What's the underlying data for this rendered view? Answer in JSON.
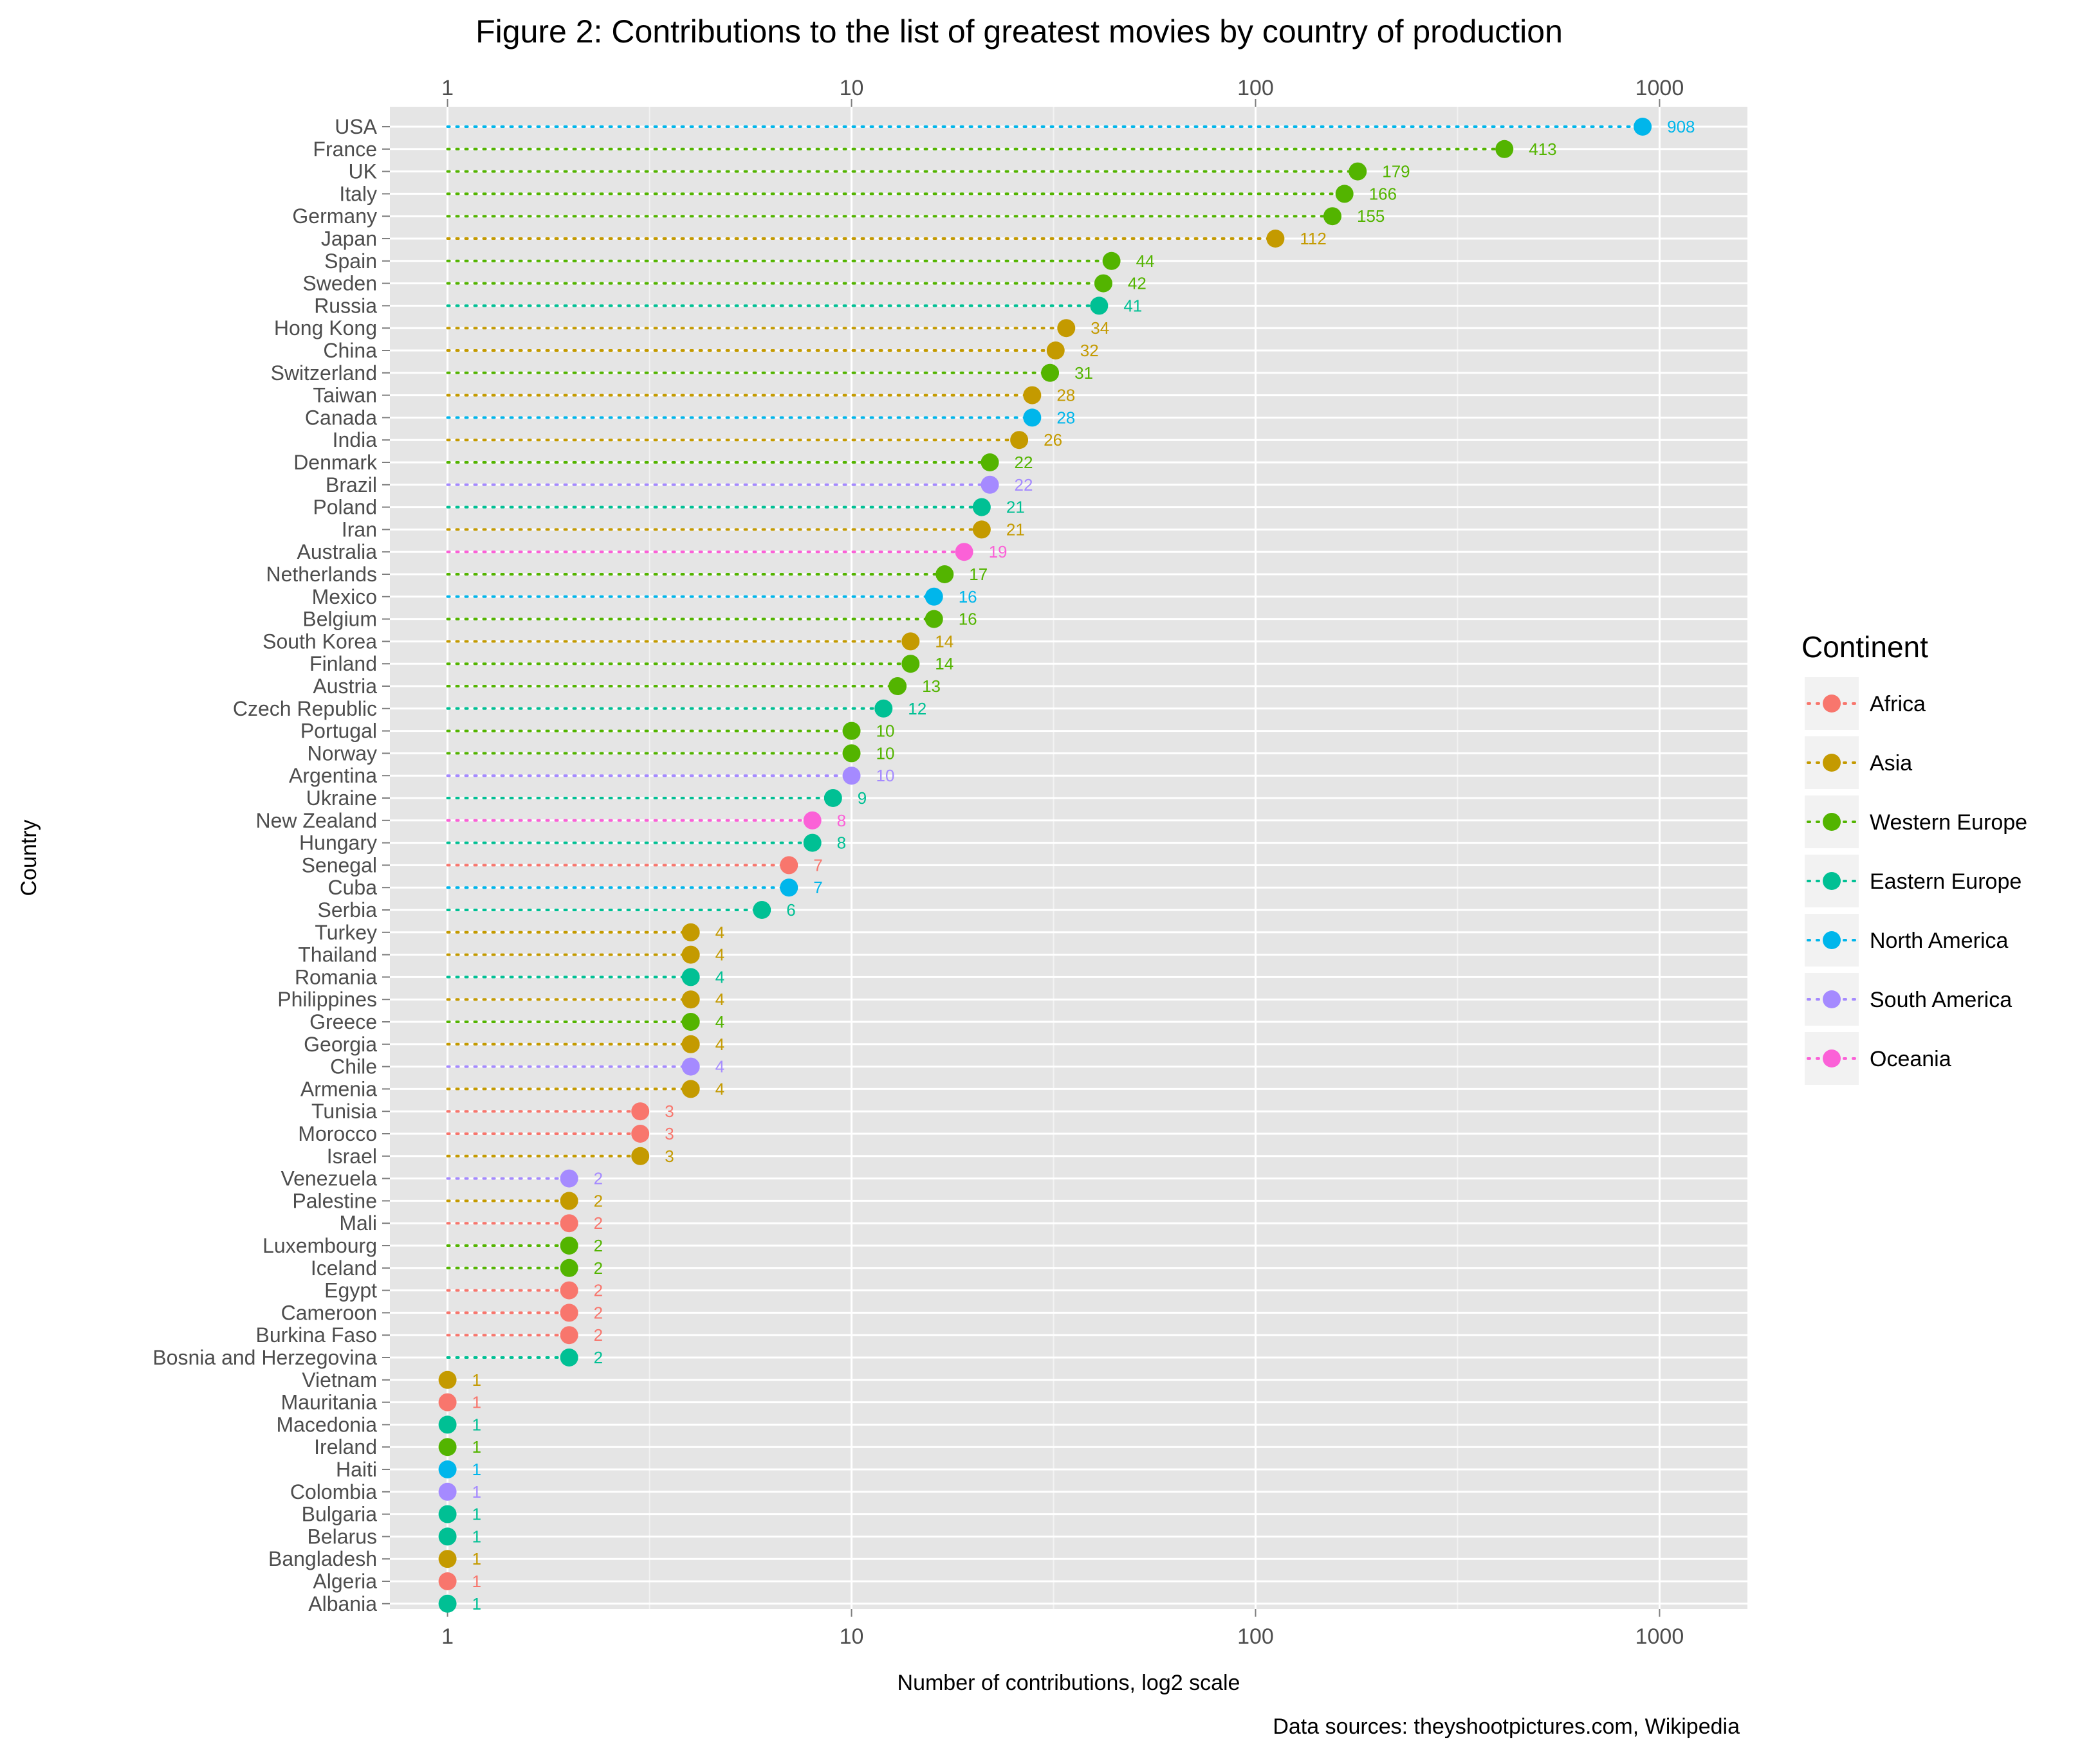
{
  "chart_data": {
    "type": "scatter",
    "title": "Figure 2: Contributions to the list of greatest movies by country of production",
    "xlabel": "Number of contributions, log2 scale",
    "ylabel": "Country",
    "caption": "Data sources: theyshootpictures.com, Wikipedia",
    "x_scale": "log",
    "x_ticks": [
      1,
      10,
      100,
      1000
    ],
    "x_tick_labels": [
      "1",
      "10",
      "100",
      "1000"
    ],
    "xlim": [
      0.72,
      1650
    ],
    "grid": true,
    "legend": {
      "title": "Continent",
      "position": "right",
      "entries": [
        {
          "name": "Africa",
          "color": "#F8766D"
        },
        {
          "name": "Asia",
          "color": "#C49A00"
        },
        {
          "name": "Western Europe",
          "color": "#53B400"
        },
        {
          "name": "Eastern Europe",
          "color": "#00C094"
        },
        {
          "name": "North America",
          "color": "#00B6EB"
        },
        {
          "name": "South America",
          "color": "#A58AFF"
        },
        {
          "name": "Oceania",
          "color": "#FB61D7"
        }
      ]
    },
    "points": [
      {
        "country": "USA",
        "value": 908,
        "continent": "North America"
      },
      {
        "country": "France",
        "value": 413,
        "continent": "Western Europe"
      },
      {
        "country": "UK",
        "value": 179,
        "continent": "Western Europe"
      },
      {
        "country": "Italy",
        "value": 166,
        "continent": "Western Europe"
      },
      {
        "country": "Germany",
        "value": 155,
        "continent": "Western Europe"
      },
      {
        "country": "Japan",
        "value": 112,
        "continent": "Asia"
      },
      {
        "country": "Spain",
        "value": 44,
        "continent": "Western Europe"
      },
      {
        "country": "Sweden",
        "value": 42,
        "continent": "Western Europe"
      },
      {
        "country": "Russia",
        "value": 41,
        "continent": "Eastern Europe"
      },
      {
        "country": "Hong Kong",
        "value": 34,
        "continent": "Asia"
      },
      {
        "country": "China",
        "value": 32,
        "continent": "Asia"
      },
      {
        "country": "Switzerland",
        "value": 31,
        "continent": "Western Europe"
      },
      {
        "country": "Taiwan",
        "value": 28,
        "continent": "Asia"
      },
      {
        "country": "Canada",
        "value": 28,
        "continent": "North America"
      },
      {
        "country": "India",
        "value": 26,
        "continent": "Asia"
      },
      {
        "country": "Denmark",
        "value": 22,
        "continent": "Western Europe"
      },
      {
        "country": "Brazil",
        "value": 22,
        "continent": "South America"
      },
      {
        "country": "Poland",
        "value": 21,
        "continent": "Eastern Europe"
      },
      {
        "country": "Iran",
        "value": 21,
        "continent": "Asia"
      },
      {
        "country": "Australia",
        "value": 19,
        "continent": "Oceania"
      },
      {
        "country": "Netherlands",
        "value": 17,
        "continent": "Western Europe"
      },
      {
        "country": "Mexico",
        "value": 16,
        "continent": "North America"
      },
      {
        "country": "Belgium",
        "value": 16,
        "continent": "Western Europe"
      },
      {
        "country": "South Korea",
        "value": 14,
        "continent": "Asia"
      },
      {
        "country": "Finland",
        "value": 14,
        "continent": "Western Europe"
      },
      {
        "country": "Austria",
        "value": 13,
        "continent": "Western Europe"
      },
      {
        "country": "Czech Republic",
        "value": 12,
        "continent": "Eastern Europe"
      },
      {
        "country": "Portugal",
        "value": 10,
        "continent": "Western Europe"
      },
      {
        "country": "Norway",
        "value": 10,
        "continent": "Western Europe"
      },
      {
        "country": "Argentina",
        "value": 10,
        "continent": "South America"
      },
      {
        "country": "Ukraine",
        "value": 9,
        "continent": "Eastern Europe"
      },
      {
        "country": "New Zealand",
        "value": 8,
        "continent": "Oceania"
      },
      {
        "country": "Hungary",
        "value": 8,
        "continent": "Eastern Europe"
      },
      {
        "country": "Senegal",
        "value": 7,
        "continent": "Africa"
      },
      {
        "country": "Cuba",
        "value": 7,
        "continent": "North America"
      },
      {
        "country": "Serbia",
        "value": 6,
        "continent": "Eastern Europe"
      },
      {
        "country": "Turkey",
        "value": 4,
        "continent": "Asia"
      },
      {
        "country": "Thailand",
        "value": 4,
        "continent": "Asia"
      },
      {
        "country": "Romania",
        "value": 4,
        "continent": "Eastern Europe"
      },
      {
        "country": "Philippines",
        "value": 4,
        "continent": "Asia"
      },
      {
        "country": "Greece",
        "value": 4,
        "continent": "Western Europe"
      },
      {
        "country": "Georgia",
        "value": 4,
        "continent": "Asia"
      },
      {
        "country": "Chile",
        "value": 4,
        "continent": "South America"
      },
      {
        "country": "Armenia",
        "value": 4,
        "continent": "Asia"
      },
      {
        "country": "Tunisia",
        "value": 3,
        "continent": "Africa"
      },
      {
        "country": "Morocco",
        "value": 3,
        "continent": "Africa"
      },
      {
        "country": "Israel",
        "value": 3,
        "continent": "Asia"
      },
      {
        "country": "Venezuela",
        "value": 2,
        "continent": "South America"
      },
      {
        "country": "Palestine",
        "value": 2,
        "continent": "Asia"
      },
      {
        "country": "Mali",
        "value": 2,
        "continent": "Africa"
      },
      {
        "country": "Luxembourg",
        "value": 2,
        "continent": "Western Europe"
      },
      {
        "country": "Iceland",
        "value": 2,
        "continent": "Western Europe"
      },
      {
        "country": "Egypt",
        "value": 2,
        "continent": "Africa"
      },
      {
        "country": "Cameroon",
        "value": 2,
        "continent": "Africa"
      },
      {
        "country": "Burkina Faso",
        "value": 2,
        "continent": "Africa"
      },
      {
        "country": "Bosnia and Herzegovina",
        "value": 2,
        "continent": "Eastern Europe"
      },
      {
        "country": "Vietnam",
        "value": 1,
        "continent": "Asia"
      },
      {
        "country": "Mauritania",
        "value": 1,
        "continent": "Africa"
      },
      {
        "country": "Macedonia",
        "value": 1,
        "continent": "Eastern Europe"
      },
      {
        "country": "Ireland",
        "value": 1,
        "continent": "Western Europe"
      },
      {
        "country": "Haiti",
        "value": 1,
        "continent": "North America"
      },
      {
        "country": "Colombia",
        "value": 1,
        "continent": "South America"
      },
      {
        "country": "Bulgaria",
        "value": 1,
        "continent": "Eastern Europe"
      },
      {
        "country": "Belarus",
        "value": 1,
        "continent": "Eastern Europe"
      },
      {
        "country": "Bangladesh",
        "value": 1,
        "continent": "Asia"
      },
      {
        "country": "Algeria",
        "value": 1,
        "continent": "Africa"
      },
      {
        "country": "Albania",
        "value": 1,
        "continent": "Eastern Europe"
      }
    ]
  }
}
